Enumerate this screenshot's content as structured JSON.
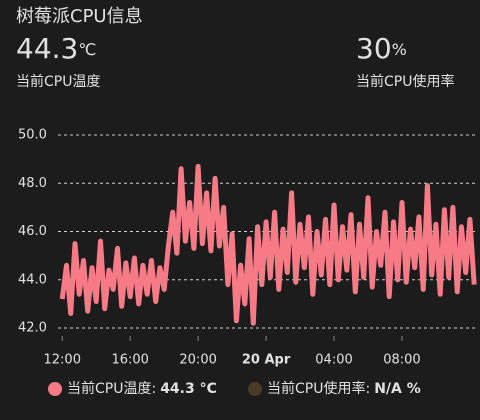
{
  "header": {
    "title": "树莓派CPU信息"
  },
  "stats": [
    {
      "value": 44.3,
      "unit": "℃",
      "label": "当前CPU温度"
    },
    {
      "value": 30,
      "unit": "%",
      "label": "当前CPU使用率"
    }
  ],
  "chart_data": {
    "type": "line",
    "x": [
      0,
      0.25,
      0.5,
      0.75,
      1,
      1.25,
      1.5,
      1.75,
      2,
      2.25,
      2.5,
      2.75,
      3,
      3.25,
      3.5,
      3.75,
      4,
      4.25,
      4.5,
      4.75,
      5,
      5.25,
      5.5,
      5.75,
      6,
      6.25,
      6.5,
      6.75,
      7,
      7.25,
      7.5,
      7.75,
      8,
      8.25,
      8.5,
      8.75,
      9,
      9.25,
      9.5,
      9.75,
      10,
      10.25,
      10.5,
      10.75,
      11,
      11.25,
      11.5,
      11.75,
      12,
      12.25,
      12.5,
      12.75,
      13,
      13.25,
      13.5,
      13.75,
      14,
      14.25,
      14.5,
      14.75,
      15,
      15.25,
      15.5,
      15.75,
      16,
      16.25,
      16.5,
      16.75,
      17,
      17.25,
      17.5,
      17.75,
      18,
      18.25,
      18.5,
      18.75,
      19,
      19.25,
      19.5,
      19.75,
      20,
      20.25,
      20.5,
      20.75,
      21,
      21.25,
      21.5,
      21.75,
      22,
      22.25,
      22.5,
      22.75,
      23,
      23.25,
      23.5,
      23.75,
      24,
      24.25
    ],
    "series": [
      {
        "color": "#f77b87",
        "values": [
          43.2,
          44.6,
          42.6,
          45.5,
          43.4,
          44.8,
          42.7,
          44.5,
          43.1,
          45.6,
          42.8,
          44.4,
          43.6,
          45.3,
          42.9,
          44.7,
          43.3,
          44.9,
          43.0,
          44.6,
          43.4,
          44.8,
          43.1,
          44.5,
          43.6,
          45.4,
          46.8,
          45.1,
          48.6,
          45.6,
          47.2,
          45.3,
          48.7,
          45.5,
          47.6,
          45.2,
          48.2,
          45.4,
          47.0,
          43.8,
          45.9,
          42.3,
          44.6,
          43.0,
          45.7,
          42.2,
          46.2,
          43.8,
          46.4,
          44.1,
          46.8,
          43.6,
          46.1,
          44.3,
          47.6,
          43.9,
          46.3,
          44.5,
          46.6,
          43.4,
          46.0,
          44.2,
          46.5,
          43.8,
          47.1,
          44.0,
          46.2,
          44.4,
          46.7,
          43.5,
          46.3,
          44.1,
          47.4,
          43.7,
          46.0,
          44.6,
          46.8,
          43.3,
          46.4,
          44.0,
          47.2,
          43.9,
          46.1,
          44.5,
          46.6,
          43.6,
          47.9,
          44.2,
          46.3,
          43.4,
          46.9,
          44.1,
          47.0,
          43.5,
          46.2,
          44.3,
          46.5,
          43.8
        ]
      }
    ],
    "xlim": [
      -0.25,
      24.3
    ],
    "xticks": [
      {
        "value": 0,
        "label": "12:00"
      },
      {
        "value": 4,
        "label": "16:00"
      },
      {
        "value": 8,
        "label": "20:00"
      },
      {
        "value": 12,
        "label": "20 Apr"
      },
      {
        "value": 16,
        "label": "04:00"
      },
      {
        "value": 20,
        "label": "08:00"
      }
    ],
    "ylim": [
      42,
      50
    ],
    "yticks": [
      {
        "value": 42,
        "label": "42.0"
      },
      {
        "value": 44,
        "label": "44.0"
      },
      {
        "value": 46,
        "label": "46.0"
      },
      {
        "value": 48,
        "label": "48.0"
      },
      {
        "value": 50,
        "label": "50.0"
      }
    ],
    "grid": true,
    "legend": [
      {
        "label": "当前CPU温度:",
        "value": "44.3 °C",
        "color": "#f77b87",
        "hidden": false
      },
      {
        "label": "当前CPU使用率:",
        "value": "N/A %",
        "color": "#4a3a28",
        "hidden": true
      }
    ]
  }
}
